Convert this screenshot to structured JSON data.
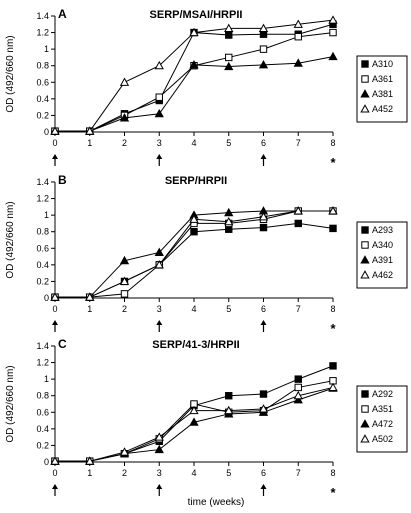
{
  "figure": {
    "xlabel": "time (weeks)"
  },
  "chart_data": [
    {
      "type": "line",
      "panel": "A",
      "title": "SERP/MSAI/HRPII",
      "ylabel": "OD (492/660 nm)",
      "ylim": [
        0,
        1.4
      ],
      "yticks": [
        "0",
        "0.2",
        "0.4",
        "0.6",
        "0.8",
        "1",
        "1.2",
        "1.4"
      ],
      "x": [
        0,
        1,
        2,
        3,
        4,
        5,
        6,
        7,
        8
      ],
      "xticks": [
        "0",
        "1",
        "2",
        "3",
        "4",
        "5",
        "6",
        "7",
        "8"
      ],
      "arrows_at": [
        0,
        3,
        6
      ],
      "asterisk_at": 8,
      "series": [
        {
          "name": "A310",
          "marker": "filled-square",
          "values": [
            0.01,
            0.01,
            0.22,
            0.38,
            1.2,
            1.17,
            1.18,
            1.18,
            1.3
          ]
        },
        {
          "name": "A361",
          "marker": "open-square",
          "values": [
            0.01,
            0.01,
            0.2,
            0.42,
            0.8,
            0.9,
            1.0,
            1.15,
            1.2
          ]
        },
        {
          "name": "A381",
          "marker": "filled-triangle",
          "values": [
            0.01,
            0.01,
            0.17,
            0.22,
            0.81,
            0.79,
            0.81,
            0.83,
            0.91
          ]
        },
        {
          "name": "A452",
          "marker": "open-triangle",
          "values": [
            0.01,
            0.01,
            0.6,
            0.8,
            1.2,
            1.25,
            1.25,
            1.3,
            1.35
          ]
        }
      ]
    },
    {
      "type": "line",
      "panel": "B",
      "title": "SERP/HRPII",
      "ylabel": "OD (492/660 nm)",
      "ylim": [
        0,
        1.4
      ],
      "yticks": [
        "0",
        "0.2",
        "0.4",
        "0.6",
        "0.8",
        "1",
        "1.2",
        "1.4"
      ],
      "x": [
        0,
        1,
        2,
        3,
        4,
        5,
        6,
        7,
        8
      ],
      "xticks": [
        "0",
        "1",
        "2",
        "3",
        "4",
        "5",
        "6",
        "7",
        "8"
      ],
      "arrows_at": [
        0,
        3,
        6
      ],
      "asterisk_at": 8,
      "series": [
        {
          "name": "A293",
          "marker": "filled-square",
          "values": [
            0.01,
            0.01,
            0.2,
            0.4,
            0.8,
            0.83,
            0.85,
            0.9,
            0.84
          ]
        },
        {
          "name": "A340",
          "marker": "open-square",
          "values": [
            0.01,
            0.01,
            0.05,
            0.4,
            0.9,
            0.9,
            0.95,
            1.05,
            1.05
          ]
        },
        {
          "name": "A391",
          "marker": "filled-triangle",
          "values": [
            0.01,
            0.01,
            0.45,
            0.55,
            1.0,
            1.03,
            1.05,
            1.05,
            1.05
          ]
        },
        {
          "name": "A462",
          "marker": "open-triangle",
          "values": [
            0.01,
            0.01,
            0.2,
            0.4,
            0.95,
            0.92,
            0.98,
            1.05,
            1.05
          ]
        }
      ]
    },
    {
      "type": "line",
      "panel": "C",
      "title": "SERP/41-3/HRPII",
      "ylabel": "OD (492/660 nm)",
      "ylim": [
        0,
        1.4
      ],
      "yticks": [
        "0",
        "0.2",
        "0.4",
        "0.6",
        "0.8",
        "1",
        "1.2",
        "1.4"
      ],
      "x": [
        0,
        1,
        2,
        3,
        4,
        5,
        6,
        7,
        8
      ],
      "xticks": [
        "0",
        "1",
        "2",
        "3",
        "4",
        "5",
        "6",
        "7",
        "8"
      ],
      "arrows_at": [
        0,
        3,
        6
      ],
      "asterisk_at": 8,
      "series": [
        {
          "name": "A292",
          "marker": "filled-square",
          "values": [
            0.01,
            0.01,
            0.1,
            0.25,
            0.68,
            0.8,
            0.82,
            1.0,
            1.16
          ]
        },
        {
          "name": "A351",
          "marker": "open-square",
          "values": [
            0.01,
            0.01,
            0.1,
            0.28,
            0.7,
            0.6,
            0.62,
            0.9,
            0.98
          ]
        },
        {
          "name": "A472",
          "marker": "filled-triangle",
          "values": [
            0.01,
            0.01,
            0.1,
            0.15,
            0.48,
            0.58,
            0.6,
            0.75,
            0.89
          ]
        },
        {
          "name": "A502",
          "marker": "open-triangle",
          "values": [
            0.01,
            0.01,
            0.12,
            0.3,
            0.62,
            0.62,
            0.64,
            0.8,
            0.9
          ]
        }
      ]
    }
  ]
}
